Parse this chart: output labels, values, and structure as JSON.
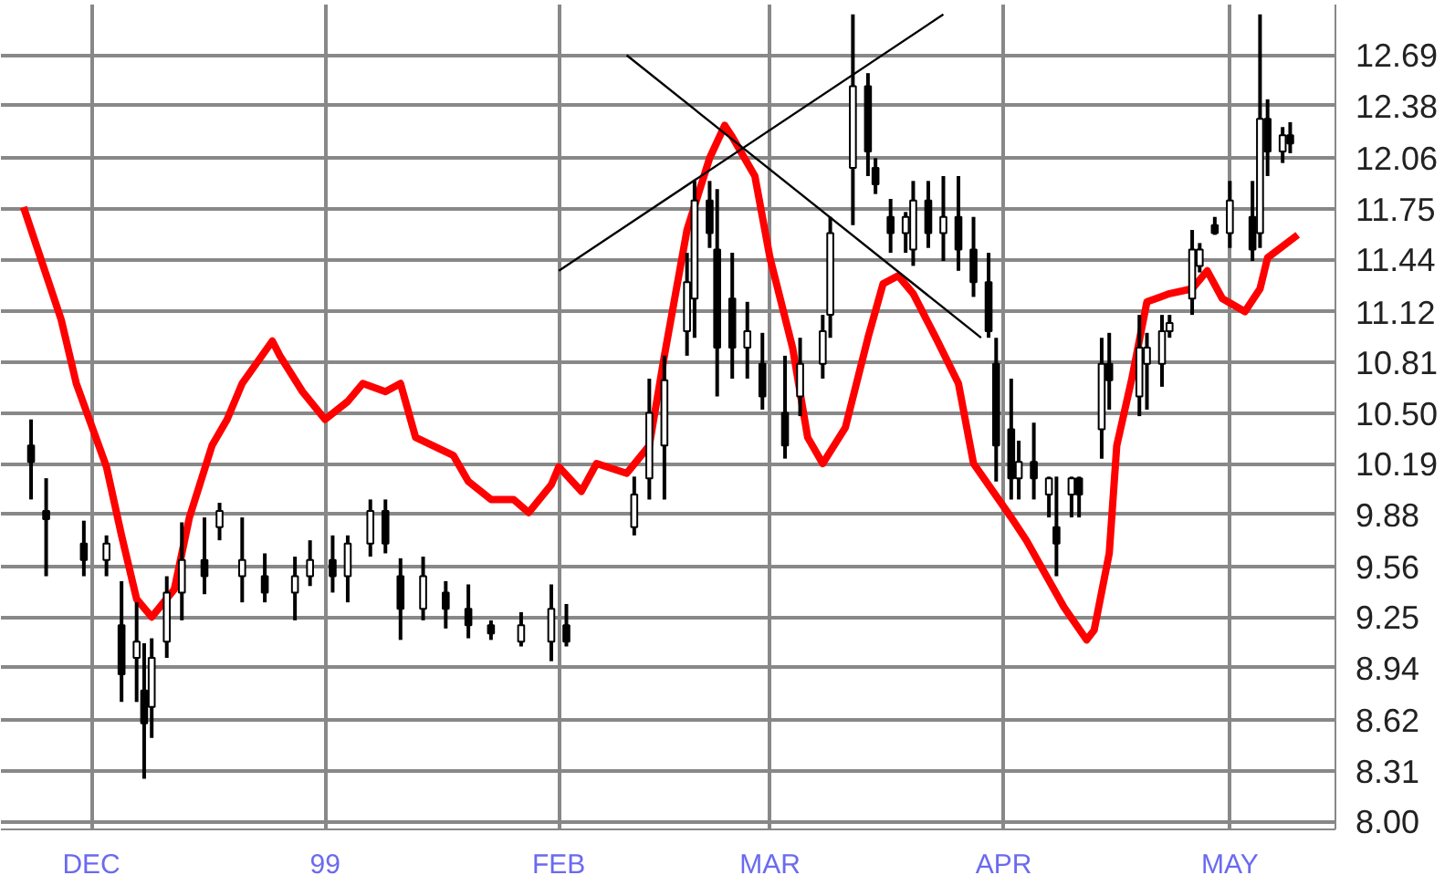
{
  "chart_data": {
    "type": "candlestick",
    "xlim": [
      "1998-11-19",
      "1999-05-15"
    ],
    "ylim": [
      7.95,
      13.0
    ],
    "xticks": [
      {
        "value": "1998-12-01",
        "label": "DEC"
      },
      {
        "value": "1999-01-01",
        "label": "99"
      },
      {
        "value": "1999-02-01",
        "label": "FEB"
      },
      {
        "value": "1999-03-01",
        "label": "MAR"
      },
      {
        "value": "1999-04-01",
        "label": "APR"
      },
      {
        "value": "1999-05-01",
        "label": "MAY"
      }
    ],
    "yticks": [
      {
        "value": 8.0,
        "label": "8.00"
      },
      8.31,
      8.62,
      8.94,
      9.25,
      9.56,
      9.88,
      10.19,
      {
        "value": 10.5,
        "label": "10.50"
      },
      10.81,
      11.12,
      11.44,
      11.75,
      12.06,
      12.38,
      12.69
    ],
    "grid": true,
    "series": [
      {
        "type": "line",
        "color": "#ff0000",
        "x": [
          "1998-11-22",
          "1998-11-27",
          "1998-11-29",
          "1998-12-03",
          "1998-12-05",
          "1998-12-07",
          "1998-12-09",
          "1998-12-12",
          "1998-12-14",
          "1998-12-17",
          "1998-12-19",
          "1998-12-21",
          "1998-12-25",
          "1998-12-26",
          "1998-12-29",
          "1999-01-01",
          "1999-01-04",
          "1999-01-06",
          "1999-01-09",
          "1999-01-11",
          "1999-01-13",
          "1999-01-18",
          "1999-01-20",
          "1999-01-23",
          "1999-01-26",
          "1999-01-28",
          "1999-01-31",
          "1999-02-01",
          "1999-02-04",
          "1999-02-06",
          "1999-02-10",
          "1999-02-13",
          "1999-02-15",
          "1999-02-18",
          "1999-02-21",
          "1999-02-23",
          "1999-02-24",
          "1999-02-27",
          "1999-03-01",
          "1999-03-04",
          "1999-03-06",
          "1999-03-08",
          "1999-03-11",
          "1999-03-14",
          "1999-03-16",
          "1999-03-18",
          "1999-03-20",
          "1999-03-23",
          "1999-03-26",
          "1999-03-28",
          "1999-04-02",
          "1999-04-04",
          "1999-04-09",
          "1999-04-12",
          "1999-04-13",
          "1999-04-15",
          "1999-04-16",
          "1999-04-18",
          "1999-04-20",
          "1999-04-23",
          "1999-04-26",
          "1999-04-28",
          "1999-04-30",
          "1999-05-03",
          "1999-05-05",
          "1999-05-06",
          "1999-05-10"
        ],
        "values": [
          11.76,
          11.07,
          10.68,
          10.17,
          9.75,
          9.36,
          9.25,
          9.42,
          9.86,
          10.3,
          10.46,
          10.68,
          10.94,
          10.85,
          10.63,
          10.46,
          10.57,
          10.68,
          10.63,
          10.68,
          10.35,
          10.24,
          10.08,
          9.97,
          9.97,
          9.89,
          10.06,
          10.17,
          10.02,
          10.19,
          10.13,
          10.3,
          10.85,
          11.62,
          12.06,
          12.26,
          12.19,
          11.95,
          11.45,
          10.9,
          10.35,
          10.19,
          10.41,
          10.96,
          11.29,
          11.34,
          11.23,
          10.96,
          10.68,
          10.19,
          9.86,
          9.72,
          9.31,
          9.11,
          9.17,
          9.64,
          10.3,
          10.71,
          11.18,
          11.23,
          11.26,
          11.37,
          11.2,
          11.12,
          11.26,
          11.45,
          11.59
        ]
      },
      {
        "type": "line",
        "color": "#000000",
        "x": [
          "1999-02-01",
          "1999-03-24"
        ],
        "values": [
          11.37,
          12.94
        ]
      },
      {
        "type": "line",
        "color": "#000000",
        "x": [
          "1999-02-10",
          "1999-03-29"
        ],
        "values": [
          12.69,
          10.96
        ]
      },
      {
        "type": "candlestick",
        "color": "#000000",
        "x": [
          "1998-11-23",
          "1998-11-25",
          "1998-11-30",
          "1998-12-03",
          "1998-12-05",
          "1998-12-07",
          "1998-12-08",
          "1998-12-09",
          "1998-12-11",
          "1998-12-13",
          "1998-12-16",
          "1998-12-18",
          "1998-12-21",
          "1998-12-24",
          "1998-12-28",
          "1998-12-30",
          "1999-01-02",
          "1999-01-04",
          "1999-01-07",
          "1999-01-09",
          "1999-01-11",
          "1999-01-14",
          "1999-01-17",
          "1999-01-20",
          "1999-01-23",
          "1999-01-27",
          "1999-01-31",
          "1999-02-02",
          "1999-02-11",
          "1999-02-13",
          "1999-02-15",
          "1999-02-18",
          "1999-02-19",
          "1999-02-21",
          "1999-02-22",
          "1999-02-24",
          "1999-02-26",
          "1999-02-28",
          "1999-03-03",
          "1999-03-05",
          "1999-03-08",
          "1999-03-09",
          "1999-03-12",
          "1999-03-14",
          "1999-03-15",
          "1999-03-17",
          "1999-03-19",
          "1999-03-20",
          "1999-03-22",
          "1999-03-24",
          "1999-03-26",
          "1999-03-28",
          "1999-03-30",
          "1999-03-31",
          "1999-04-02",
          "1999-04-03",
          "1999-04-05",
          "1999-04-07",
          "1999-04-08",
          "1999-04-10",
          "1999-04-11",
          "1999-04-14",
          "1999-04-15",
          "1999-04-19",
          "1999-04-20",
          "1999-04-22",
          "1999-04-23",
          "1999-04-26",
          "1999-04-27",
          "1999-04-29",
          "1999-05-01",
          "1999-05-04",
          "1999-05-05",
          "1999-05-06",
          "1999-05-08",
          "1999-05-09"
        ],
        "ohlc": [
          [
            10.3,
            10.46,
            9.97,
            10.2
          ],
          [
            9.9,
            10.1,
            9.5,
            9.85
          ],
          [
            9.7,
            9.84,
            9.5,
            9.6
          ],
          [
            9.6,
            9.75,
            9.5,
            9.7
          ],
          [
            9.2,
            9.47,
            8.73,
            8.9
          ],
          [
            9.0,
            9.34,
            8.73,
            9.1
          ],
          [
            8.8,
            9.09,
            8.26,
            8.6
          ],
          [
            8.7,
            9.12,
            8.51,
            9.0
          ],
          [
            9.1,
            9.5,
            9.0,
            9.4
          ],
          [
            9.4,
            9.83,
            9.23,
            9.6
          ],
          [
            9.6,
            9.86,
            9.39,
            9.5
          ],
          [
            9.8,
            9.95,
            9.72,
            9.9
          ],
          [
            9.5,
            9.86,
            9.34,
            9.6
          ],
          [
            9.5,
            9.64,
            9.34,
            9.4
          ],
          [
            9.4,
            9.62,
            9.23,
            9.5
          ],
          [
            9.5,
            9.72,
            9.44,
            9.6
          ],
          [
            9.6,
            9.75,
            9.4,
            9.5
          ],
          [
            9.5,
            9.75,
            9.34,
            9.7
          ],
          [
            9.7,
            9.97,
            9.62,
            9.9
          ],
          [
            9.9,
            9.97,
            9.64,
            9.7
          ],
          [
            9.5,
            9.61,
            9.11,
            9.3
          ],
          [
            9.3,
            9.62,
            9.23,
            9.5
          ],
          [
            9.4,
            9.47,
            9.18,
            9.3
          ],
          [
            9.3,
            9.45,
            9.12,
            9.2
          ],
          [
            9.2,
            9.23,
            9.11,
            9.15
          ],
          [
            9.1,
            9.28,
            9.07,
            9.2
          ],
          [
            9.1,
            9.45,
            8.98,
            9.3
          ],
          [
            9.2,
            9.33,
            9.07,
            9.1
          ],
          [
            9.8,
            10.11,
            9.75,
            10.0
          ],
          [
            10.1,
            10.71,
            9.97,
            10.5
          ],
          [
            10.3,
            10.85,
            9.97,
            10.7
          ],
          [
            11.0,
            11.48,
            10.85,
            11.3
          ],
          [
            11.2,
            11.92,
            10.96,
            11.8
          ],
          [
            11.8,
            11.92,
            11.51,
            11.6
          ],
          [
            11.5,
            11.87,
            10.6,
            10.9
          ],
          [
            11.2,
            11.48,
            10.71,
            10.9
          ],
          [
            10.9,
            11.18,
            10.71,
            11.0
          ],
          [
            10.8,
            10.99,
            10.52,
            10.6
          ],
          [
            10.5,
            10.85,
            10.22,
            10.3
          ],
          [
            10.6,
            10.96,
            10.48,
            10.8
          ],
          [
            10.8,
            11.1,
            10.71,
            11.0
          ],
          [
            11.1,
            11.7,
            10.96,
            11.6
          ],
          [
            12.0,
            12.94,
            11.65,
            12.5
          ],
          [
            12.5,
            12.58,
            11.95,
            12.1
          ],
          [
            12.0,
            12.06,
            11.84,
            11.9
          ],
          [
            11.7,
            11.81,
            11.48,
            11.6
          ],
          [
            11.6,
            11.73,
            11.48,
            11.7
          ],
          [
            11.5,
            11.92,
            11.4,
            11.8
          ],
          [
            11.8,
            11.92,
            11.51,
            11.6
          ],
          [
            11.6,
            11.95,
            11.43,
            11.7
          ],
          [
            11.7,
            11.95,
            11.37,
            11.5
          ],
          [
            11.5,
            11.7,
            11.21,
            11.3
          ],
          [
            11.3,
            11.48,
            10.96,
            11.0
          ],
          [
            10.8,
            10.96,
            10.08,
            10.3
          ],
          [
            10.4,
            10.71,
            9.97,
            10.1
          ],
          [
            10.1,
            10.33,
            9.97,
            10.2
          ],
          [
            10.2,
            10.44,
            9.97,
            10.1
          ],
          [
            10.0,
            10.11,
            9.86,
            10.1
          ],
          [
            9.8,
            10.11,
            9.5,
            9.7
          ],
          [
            10.0,
            10.11,
            9.86,
            10.1
          ],
          [
            10.1,
            10.11,
            9.86,
            10.0
          ],
          [
            10.4,
            10.96,
            10.22,
            10.8
          ],
          [
            10.8,
            10.99,
            10.52,
            10.7
          ],
          [
            10.6,
            11.1,
            10.48,
            10.9
          ],
          [
            10.8,
            10.99,
            10.52,
            10.9
          ],
          [
            10.8,
            11.1,
            10.66,
            11.0
          ],
          [
            11.0,
            11.1,
            10.96,
            11.05
          ],
          [
            11.2,
            11.62,
            11.1,
            11.5
          ],
          [
            11.4,
            11.54,
            11.36,
            11.5
          ],
          [
            11.65,
            11.7,
            11.59,
            11.6
          ],
          [
            11.6,
            11.92,
            11.51,
            11.8
          ],
          [
            11.7,
            11.92,
            11.43,
            11.5
          ],
          [
            11.6,
            12.94,
            11.51,
            12.3
          ],
          [
            12.3,
            12.42,
            11.95,
            12.1
          ],
          [
            12.1,
            12.25,
            12.03,
            12.2
          ],
          [
            12.2,
            12.28,
            12.09,
            12.15
          ]
        ]
      }
    ]
  }
}
